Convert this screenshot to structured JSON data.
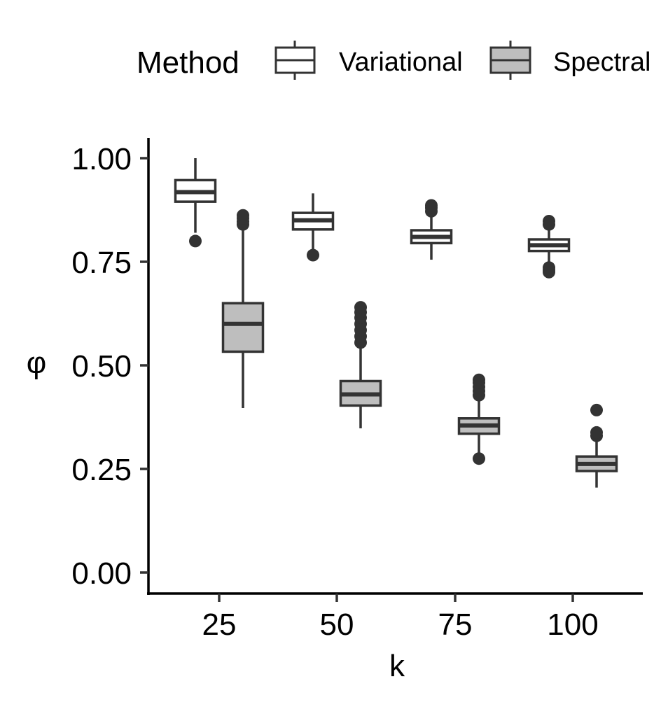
{
  "chart_data": {
    "type": "boxplot",
    "title": "",
    "xlabel": "k",
    "ylabel": "φ",
    "ylim": [
      0,
      1.05
    ],
    "yticks": [
      0,
      0.25,
      0.5,
      0.75,
      1.0
    ],
    "ytick_labels": [
      "0.00",
      "0.25",
      "0.50",
      "0.75",
      "1.00"
    ],
    "categories": [
      "25",
      "50",
      "75",
      "100"
    ],
    "legend": {
      "title": "Method",
      "position": "top",
      "entries": [
        "Variational",
        "Spectral"
      ]
    },
    "series": [
      {
        "name": "Variational",
        "fill": "#ffffff",
        "stroke": "#333333",
        "boxes": [
          {
            "q1": 0.895,
            "median": 0.918,
            "q3": 0.947,
            "whisker_low": 0.82,
            "whisker_high": 1.0,
            "outliers": [
              0.8
            ]
          },
          {
            "q1": 0.828,
            "median": 0.85,
            "q3": 0.868,
            "whisker_low": 0.78,
            "whisker_high": 0.915,
            "outliers": [
              0.766
            ]
          },
          {
            "q1": 0.795,
            "median": 0.81,
            "q3": 0.826,
            "whisker_low": 0.755,
            "whisker_high": 0.862,
            "outliers": [
              0.872,
              0.88,
              0.886
            ]
          },
          {
            "q1": 0.776,
            "median": 0.79,
            "q3": 0.804,
            "whisker_low": 0.745,
            "whisker_high": 0.83,
            "outliers": [
              0.725,
              0.73,
              0.736,
              0.84,
              0.848
            ]
          }
        ]
      },
      {
        "name": "Spectral",
        "fill": "#bebebe",
        "stroke": "#333333",
        "boxes": [
          {
            "q1": 0.533,
            "median": 0.6,
            "q3": 0.65,
            "whisker_low": 0.397,
            "whisker_high": 0.83,
            "outliers": [
              0.84,
              0.847,
              0.855,
              0.862
            ]
          },
          {
            "q1": 0.403,
            "median": 0.43,
            "q3": 0.462,
            "whisker_low": 0.348,
            "whisker_high": 0.545,
            "outliers": [
              0.555,
              0.57,
              0.585,
              0.6,
              0.615,
              0.628,
              0.64
            ]
          },
          {
            "q1": 0.335,
            "median": 0.355,
            "q3": 0.372,
            "whisker_low": 0.287,
            "whisker_high": 0.42,
            "outliers": [
              0.275,
              0.428,
              0.438,
              0.448,
              0.458,
              0.465
            ]
          },
          {
            "q1": 0.245,
            "median": 0.262,
            "q3": 0.28,
            "whisker_low": 0.205,
            "whisker_high": 0.32,
            "outliers": [
              0.33,
              0.338,
              0.392
            ]
          }
        ]
      }
    ]
  }
}
